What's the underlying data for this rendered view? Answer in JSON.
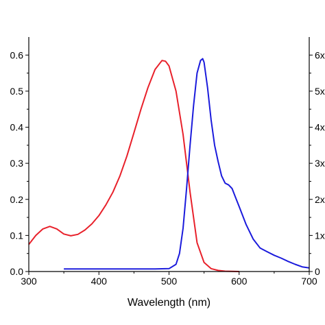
{
  "chart_data": {
    "type": "line",
    "xlabel": "Wavelength (nm)",
    "ylabel": "",
    "y2label": "",
    "xlim": [
      300,
      700
    ],
    "ylim": [
      0,
      0.65
    ],
    "y2lim": [
      0,
      6.5
    ],
    "x_ticks": [
      "300",
      "400",
      "500",
      "600",
      "700"
    ],
    "y_ticks": [
      "0.0",
      "0.1",
      "0.2",
      "0.3",
      "0.4",
      "0.5",
      "0.6"
    ],
    "y2_ticks": [
      "0",
      "1x",
      "2x",
      "3x",
      "4x",
      "5x",
      "6x"
    ],
    "grid": false,
    "series": [
      {
        "axis": "left",
        "color": "#e8202a",
        "x": [
          300,
          310,
          320,
          330,
          340,
          350,
          360,
          370,
          380,
          390,
          400,
          410,
          420,
          430,
          440,
          450,
          460,
          470,
          480,
          490,
          495,
          500,
          510,
          520,
          530,
          540,
          550,
          560,
          570,
          580,
          600
        ],
        "y": [
          0.075,
          0.1,
          0.118,
          0.125,
          0.118,
          0.104,
          0.099,
          0.103,
          0.115,
          0.132,
          0.155,
          0.185,
          0.22,
          0.265,
          0.32,
          0.385,
          0.45,
          0.51,
          0.56,
          0.585,
          0.583,
          0.57,
          0.5,
          0.38,
          0.22,
          0.08,
          0.025,
          0.008,
          0.003,
          0.001,
          0.0
        ]
      },
      {
        "axis": "right",
        "color": "#1a1adc",
        "x": [
          350,
          400,
          450,
          480,
          500,
          510,
          515,
          520,
          525,
          530,
          535,
          540,
          545,
          548,
          550,
          555,
          560,
          565,
          570,
          575,
          580,
          585,
          590,
          595,
          600,
          610,
          620,
          630,
          640,
          650,
          660,
          670,
          680,
          690,
          700
        ],
        "y": [
          0.07,
          0.07,
          0.07,
          0.07,
          0.08,
          0.2,
          0.5,
          1.2,
          2.3,
          3.5,
          4.6,
          5.5,
          5.85,
          5.9,
          5.8,
          5.1,
          4.2,
          3.5,
          3.05,
          2.65,
          2.45,
          2.4,
          2.3,
          2.05,
          1.8,
          1.3,
          0.9,
          0.65,
          0.55,
          0.45,
          0.37,
          0.28,
          0.2,
          0.13,
          0.1
        ]
      }
    ]
  }
}
